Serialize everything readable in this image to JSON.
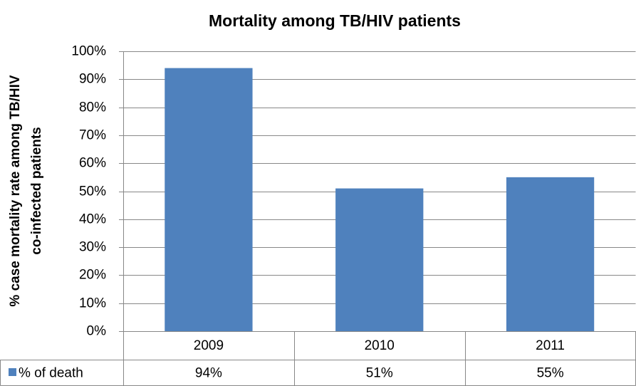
{
  "chart_data": {
    "type": "bar",
    "title": "Mortality among TB/HIV patients",
    "ylabel": [
      "% case mortality rate among TB/HIV",
      "co-infected patients"
    ],
    "categories": [
      "2009",
      "2010",
      "2011"
    ],
    "series": [
      {
        "name": "% of death",
        "color": "#4f81bd",
        "values": [
          94,
          51,
          55
        ],
        "value_labels": [
          "94%",
          "51%",
          "55%"
        ]
      }
    ],
    "ylim": [
      0,
      100
    ],
    "yticks": [
      {
        "value": 0,
        "label": "0%"
      },
      {
        "value": 10,
        "label": "10%"
      },
      {
        "value": 20,
        "label": "20%"
      },
      {
        "value": 30,
        "label": "30%"
      },
      {
        "value": 40,
        "label": "40%"
      },
      {
        "value": 50,
        "label": "50%"
      },
      {
        "value": 60,
        "label": "60%"
      },
      {
        "value": 70,
        "label": "70%"
      },
      {
        "value": 80,
        "label": "80%"
      },
      {
        "value": 90,
        "label": "90%"
      },
      {
        "value": 100,
        "label": "100%"
      }
    ],
    "grid": true,
    "data_table": true
  }
}
